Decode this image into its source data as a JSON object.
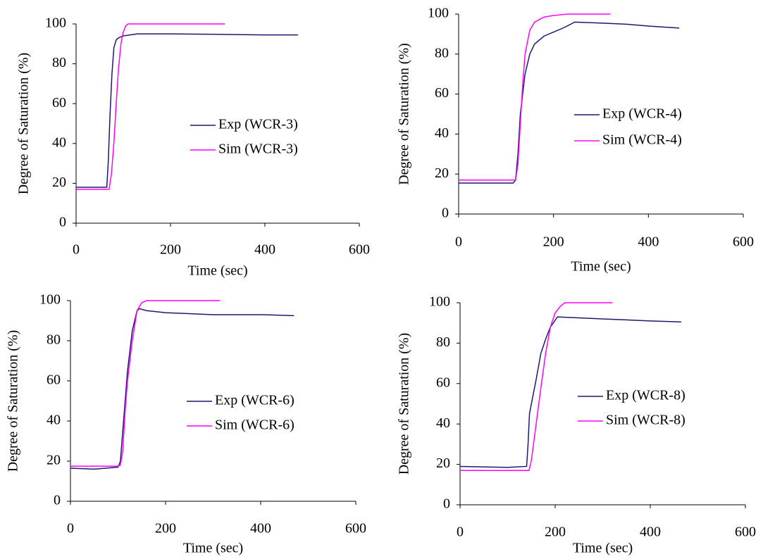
{
  "chart_data": [
    {
      "type": "line",
      "xlabel": "Time (sec)",
      "ylabel": "Degree of Saturation (%)",
      "xlim": [
        0,
        600
      ],
      "xticks": [
        0,
        200,
        400,
        600
      ],
      "ylim": [
        0,
        100
      ],
      "yticks": [
        0,
        20,
        40,
        60,
        80,
        100
      ],
      "series": [
        {
          "name": "Exp (WCR-3)",
          "color": "#1a1a6e",
          "x": [
            0,
            60,
            65,
            68,
            72,
            76,
            80,
            85,
            90,
            100,
            130,
            200,
            300,
            400,
            470
          ],
          "values": [
            18,
            18,
            18,
            30,
            55,
            75,
            88,
            92,
            93,
            94,
            95,
            95,
            94.8,
            94.5,
            94.5
          ]
        },
        {
          "name": "Sim (WCR-3)",
          "color": "#ff00ff",
          "x": [
            0,
            70,
            75,
            80,
            85,
            90,
            95,
            100,
            105,
            110,
            315
          ],
          "values": [
            17,
            17,
            25,
            40,
            60,
            78,
            90,
            96,
            99,
            100,
            100
          ]
        }
      ]
    },
    {
      "type": "line",
      "xlabel": "Time (sec)",
      "ylabel": "Degree of Saturation (%)",
      "xlim": [
        0,
        600
      ],
      "xticks": [
        0,
        200,
        400,
        600
      ],
      "ylim": [
        0,
        100
      ],
      "yticks": [
        0,
        20,
        40,
        60,
        80,
        100
      ],
      "series": [
        {
          "name": "Exp (WCR-4)",
          "color": "#1a1a6e",
          "x": [
            0,
            115,
            120,
            125,
            130,
            140,
            150,
            160,
            180,
            200,
            220,
            245,
            300,
            350,
            400,
            465
          ],
          "values": [
            15.5,
            15.5,
            17,
            30,
            50,
            70,
            80,
            85,
            89,
            91,
            93,
            96,
            95.5,
            95,
            94,
            93
          ]
        },
        {
          "name": "Sim (WCR-4)",
          "color": "#ff00ff",
          "x": [
            0,
            120,
            125,
            130,
            135,
            140,
            150,
            160,
            180,
            200,
            230,
            320
          ],
          "values": [
            17,
            17,
            25,
            45,
            65,
            80,
            92,
            96,
            98.5,
            99.3,
            100,
            100
          ]
        }
      ]
    },
    {
      "type": "line",
      "xlabel": "Time (sec)",
      "ylabel": "Degree of Saturation (%)",
      "xlim": [
        0,
        600
      ],
      "xticks": [
        0,
        200,
        400,
        600
      ],
      "ylim": [
        0,
        100
      ],
      "yticks": [
        0,
        20,
        40,
        60,
        80,
        100
      ],
      "series": [
        {
          "name": "Exp (WCR-6)",
          "color": "#1a1a6e",
          "x": [
            0,
            50,
            100,
            105,
            110,
            115,
            120,
            130,
            140,
            145,
            160,
            200,
            300,
            400,
            470
          ],
          "values": [
            16.5,
            16,
            17,
            20,
            35,
            50,
            65,
            85,
            95,
            96,
            95,
            94,
            93,
            93,
            92.5
          ]
        },
        {
          "name": "Sim (WCR-6)",
          "color": "#ff00ff",
          "x": [
            0,
            100,
            105,
            110,
            115,
            120,
            130,
            140,
            150,
            160,
            315
          ],
          "values": [
            17.5,
            17.5,
            18,
            25,
            45,
            60,
            80,
            95,
            99,
            100,
            100
          ]
        }
      ]
    },
    {
      "type": "line",
      "xlabel": "Time (sec)",
      "ylabel": "Degree of Saturation (%)",
      "xlim": [
        0,
        600
      ],
      "xticks": [
        0,
        200,
        400,
        600
      ],
      "ylim": [
        0,
        100
      ],
      "yticks": [
        0,
        20,
        40,
        60,
        80,
        100
      ],
      "series": [
        {
          "name": "Exp (WCR-8)",
          "color": "#1a1a6e",
          "x": [
            0,
            100,
            140,
            143,
            146,
            150,
            160,
            170,
            180,
            190,
            205,
            250,
            300,
            400,
            465
          ],
          "values": [
            19,
            18.5,
            19,
            30,
            45,
            50,
            62,
            75,
            82,
            88,
            93,
            92.5,
            92,
            91,
            90.5
          ]
        },
        {
          "name": "Sim (WCR-8)",
          "color": "#ff00ff",
          "x": [
            0,
            145,
            150,
            160,
            170,
            180,
            190,
            200,
            210,
            220,
            320
          ],
          "values": [
            17,
            17,
            22,
            40,
            58,
            75,
            88,
            95,
            98,
            100,
            100
          ]
        }
      ]
    }
  ]
}
